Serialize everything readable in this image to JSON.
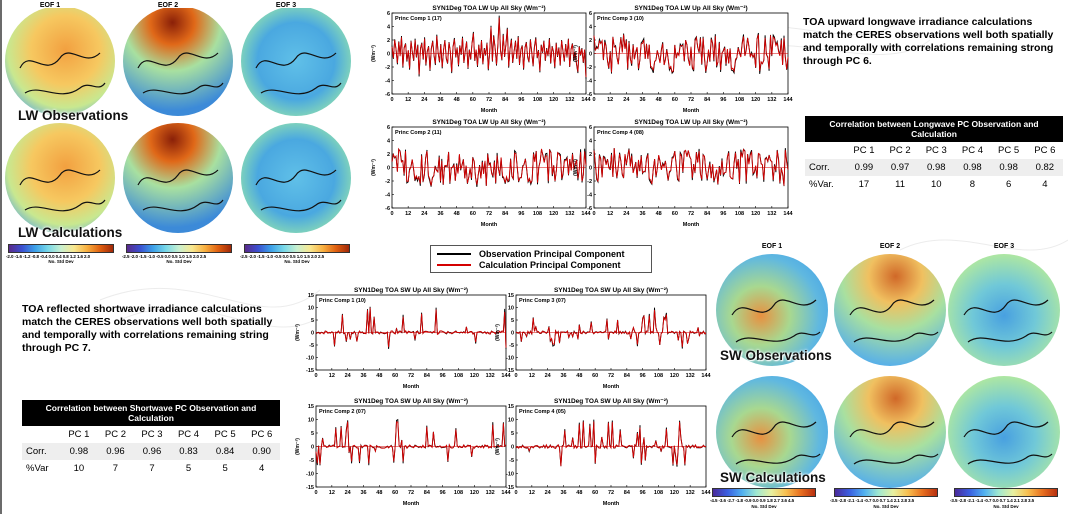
{
  "lw_panel": {
    "eof_titles": [
      "EOF 1",
      "EOF 2",
      "EOF 3"
    ],
    "label_obs": "LW Observations",
    "label_calc": "LW Calculations",
    "colorbars": [
      {
        "ticks": "-2.0 -1.6 -1.2 -0.8 -0.4 0.0 0.4 0.8 1.2 1.6 2.0",
        "unit": "No. Std Dev"
      },
      {
        "ticks": "-2.5 -2.0 -1.5 -1.0 -0.5 0.0 0.5 1.0 1.5 2.0 2.5",
        "unit": "No. Std Dev"
      },
      {
        "ticks": "-2.5 -2.0 -1.5 -1.0 -0.5 0.0 0.5 1.0 1.5 2.0 2.5",
        "unit": "No. Std Dev"
      }
    ]
  },
  "sw_panel": {
    "eof_titles": [
      "EOF 1",
      "EOF 2",
      "EOF 3"
    ],
    "label_obs": "SW Observations",
    "label_calc": "SW Calculations",
    "colorbars": [
      {
        "ticks": "-4.5 -3.6 -2.7 -1.8 -0.9 0.0 0.9 1.8 2.7 3.6 4.5",
        "unit": "No. Std Dev"
      },
      {
        "ticks": "-3.5 -2.8 -2.1 -1.4 -0.7 0.0 0.7 1.4 2.1 2.8 3.5",
        "unit": "No. Std Dev"
      },
      {
        "ticks": "-3.5 -2.8 -2.1 -1.4 -0.7 0.0 0.7 1.4 2.1 2.8 3.5",
        "unit": "No. Std Dev"
      }
    ]
  },
  "legend": {
    "obs_label": "Observation Principal Component",
    "calc_label": "Calculation Principal Component",
    "obs_color": "#000000",
    "calc_color": "#d40000"
  },
  "text": {
    "lw_description": "TOA upward longwave irradiance calculations match the CERES observations well both spatially and temporally with correlations remaining strong through PC 6.",
    "sw_description": "TOA reflected shortwave irradiance calculations match the CERES observations well both spatially and temporally with correlations remaining string through PC 7."
  },
  "lw_table": {
    "title": "Correlation between Longwave PC Observation and Calculation",
    "columns": [
      "PC 1",
      "PC 2",
      "PC 3",
      "PC 4",
      "PC 5",
      "PC 6"
    ],
    "rows": [
      {
        "label": "Corr.",
        "values": [
          "0.99",
          "0.97",
          "0.98",
          "0.98",
          "0.98",
          "0.82"
        ]
      },
      {
        "label": "%Var.",
        "values": [
          "17",
          "11",
          "10",
          "8",
          "6",
          "4"
        ]
      }
    ]
  },
  "sw_table": {
    "title": "Correlation between Shortwave PC Observation and Calculation",
    "columns": [
      "PC 1",
      "PC 2",
      "PC 3",
      "PC 4",
      "PC 5",
      "PC 6"
    ],
    "rows": [
      {
        "label": "Corr.",
        "values": [
          "0.98",
          "0.96",
          "0.96",
          "0.83",
          "0.84",
          "0.90"
        ]
      },
      {
        "label": "%Var",
        "values": [
          "10",
          "7",
          "7",
          "5",
          "5",
          "4"
        ]
      }
    ]
  },
  "chart_data": [
    {
      "id": "lw1",
      "type": "line",
      "title": "SYN1Deg TOA LW Up All Sky (Wm⁻²)",
      "subtitle": "Princ Comp 1 (17)",
      "xlabel": "Month",
      "ylabel": "(Wm⁻²)",
      "xlim": [
        0,
        144
      ],
      "ylim": [
        -6,
        6
      ],
      "xticks": [
        0,
        12,
        24,
        36,
        48,
        60,
        72,
        84,
        96,
        108,
        120,
        132,
        144
      ],
      "yticks": [
        -6,
        -4,
        -2,
        0,
        2,
        4,
        6
      ],
      "seed": 11,
      "amp": 2.0,
      "series": [
        {
          "name": "Observation Principal Component",
          "values": [
            1.2,
            -0.8,
            2.1,
            0.5,
            -1.6,
            1.8,
            -0.3,
            2.6,
            -2.1,
            0.9,
            1.5,
            -1.2,
            0.4,
            -2.4,
            1.9,
            0.2,
            -1.1,
            2.2,
            -0.6,
            1.3,
            -3.4,
            0.8,
            1.6,
            -0.9,
            2.4,
            -1.8,
            0.3,
            1.1,
            -2.6,
            0.7,
            1.9,
            -0.4,
            -1.7,
            2.8,
            0.1,
            -1.3,
            1.4,
            -2.2,
            0.6,
            2.0,
            -0.8,
            -1.5,
            1.7,
            0.3,
            -2.9,
            1.0,
            2.3,
            -0.6,
            0.9,
            -1.9,
            1.2,
            -0.2,
            2.5,
            -1.4,
            0.4,
            1.8,
            -2.3,
            0.6,
            -0.9,
            1.5,
            3.2,
            -1.1,
            0.5,
            -2.0,
            1.3,
            -0.7,
            2.0,
            -1.6,
            0.8,
            -0.3,
            1.6,
            -2.5,
            0.2,
            4.1,
            -1.2,
            2.7,
            0.9,
            -1.8,
            1.1,
            5.6,
            0.4,
            -1.0,
            2.9,
            -0.5,
            1.5,
            3.8,
            -2.1,
            0.7,
            2.2,
            -1.4,
            0.3,
            1.9,
            -0.8,
            2.6,
            -1.7,
            0.6,
            1.2,
            -2.4,
            0.9,
            1.7,
            -0.6,
            -1.3,
            2.1,
            0.2,
            -1.9,
            1.0,
            2.4,
            -0.7,
            0.5,
            -2.8,
            1.3,
            0.1,
            1.9,
            -1.1,
            0.8,
            -0.4,
            2.3,
            -1.5,
            1.1,
            0.3,
            -2.2,
            1.6,
            -0.5,
            0.9,
            -1.8,
            2.0,
            0.4,
            -1.2,
            1.4,
            -0.6,
            2.2,
            -2.0,
            0.7,
            1.5,
            -1.0,
            0.2,
            -1.6,
            -2.9,
            1.1,
            -0.3,
            0.8,
            -1.4,
            0.5,
            -3.8
          ]
        },
        {
          "name": "Calculation Principal Component",
          "values": [
            1.0,
            -0.7,
            2.0,
            0.6,
            -1.4,
            1.7,
            -0.4,
            2.4,
            -1.9,
            0.8,
            1.4,
            -1.0,
            0.5,
            -2.2,
            1.8,
            0.3,
            -1.0,
            2.0,
            -0.5,
            1.2,
            -3.1,
            0.7,
            1.5,
            -0.8,
            2.2,
            -1.6,
            0.4,
            1.0,
            -2.4,
            0.8,
            1.8,
            -0.3,
            -1.5,
            2.6,
            0.2,
            -1.2,
            1.3,
            -2.0,
            0.5,
            1.9,
            -0.7,
            -1.4,
            1.6,
            0.4,
            -2.7,
            0.9,
            2.1,
            -0.5,
            0.8,
            -1.7,
            1.1,
            -0.1,
            2.3,
            -1.3,
            0.5,
            1.7,
            -2.1,
            0.5,
            -0.8,
            1.4,
            3.0,
            -1.0,
            0.6,
            -1.8,
            1.2,
            -0.6,
            1.9,
            -1.5,
            0.7,
            -0.2,
            1.5,
            -2.3,
            0.3,
            3.9,
            -1.1,
            2.5,
            0.8,
            -1.6,
            1.0,
            5.3,
            0.5,
            -0.9,
            2.7,
            -0.4,
            1.4,
            3.6,
            -1.9,
            0.6,
            2.0,
            -1.3,
            0.4,
            1.8,
            -0.7,
            2.4,
            -1.6,
            0.5,
            1.1,
            -2.2,
            0.8,
            1.6,
            -0.5,
            -1.2,
            2.0,
            0.3,
            -1.8,
            0.9,
            2.2,
            -0.6,
            0.4,
            -2.6,
            1.2,
            0.2,
            1.8,
            -1.0,
            0.7,
            -0.3,
            2.1,
            -1.4,
            1.0,
            0.4,
            -2.0,
            1.5,
            -0.4,
            0.8,
            -1.7,
            1.9,
            0.5,
            -1.1,
            1.3,
            -0.5,
            2.1,
            -1.9,
            0.6,
            1.4,
            -0.9,
            0.3,
            -1.5,
            -2.7,
            1.0,
            -0.2,
            0.7,
            -1.3,
            0.6,
            -3.5
          ]
        }
      ]
    },
    {
      "id": "lw3",
      "type": "line",
      "title": "SYN1Deg TOA LW Up All Sky (Wm⁻²)",
      "subtitle": "Princ Comp 3 (10)",
      "xlabel": "Month",
      "ylabel": "(Wm⁻²)",
      "xlim": [
        0,
        144
      ],
      "ylim": [
        -6,
        6
      ],
      "xticks": [
        0,
        12,
        24,
        36,
        48,
        60,
        72,
        84,
        96,
        108,
        120,
        132,
        144
      ],
      "yticks": [
        -6,
        -4,
        -2,
        0,
        2,
        4,
        6
      ],
      "seed": 23,
      "amp": 1.9,
      "series": []
    },
    {
      "id": "lw2",
      "type": "line",
      "title": "SYN1Deg TOA LW Up All Sky (Wm⁻²)",
      "subtitle": "Princ Comp 2 (11)",
      "xlabel": "Month",
      "ylabel": "(Wm⁻²)",
      "xlim": [
        0,
        144
      ],
      "ylim": [
        -6,
        6
      ],
      "xticks": [
        0,
        12,
        24,
        36,
        48,
        60,
        72,
        84,
        96,
        108,
        120,
        132,
        144
      ],
      "yticks": [
        -6,
        -4,
        -2,
        0,
        2,
        4,
        6
      ],
      "seed": 37,
      "amp": 1.8,
      "series": []
    },
    {
      "id": "lw4",
      "type": "line",
      "title": "SYN1Deg TOA LW Up All Sky (Wm⁻²)",
      "subtitle": "Princ Comp 4 (08)",
      "xlabel": "Month",
      "ylabel": "(Wm⁻²)",
      "xlim": [
        0,
        144
      ],
      "ylim": [
        -6,
        6
      ],
      "xticks": [
        0,
        12,
        24,
        36,
        48,
        60,
        72,
        84,
        96,
        108,
        120,
        132,
        144
      ],
      "yticks": [
        -6,
        -4,
        -2,
        0,
        2,
        4,
        6
      ],
      "seed": 41,
      "amp": 1.8,
      "series": []
    },
    {
      "id": "sw1",
      "type": "line",
      "title": "SYN1Deg TOA SW Up All Sky (Wm⁻²)",
      "subtitle": "Princ Comp 1 (10)",
      "xlabel": "Month",
      "ylabel": "(Wm⁻²)",
      "xlim": [
        0,
        144
      ],
      "ylim": [
        -15,
        15
      ],
      "xticks": [
        0,
        12,
        24,
        36,
        48,
        60,
        72,
        84,
        96,
        108,
        120,
        132,
        144
      ],
      "yticks": [
        -15,
        -10,
        -5,
        0,
        5,
        10,
        15
      ],
      "seed": 53,
      "amp": 1.0,
      "spiky": true,
      "series": []
    },
    {
      "id": "sw3",
      "type": "line",
      "title": "SYN1Deg TOA SW Up All Sky (Wm⁻²)",
      "subtitle": "Princ Comp 3 (07)",
      "xlabel": "Month",
      "ylabel": "(Wm⁻²)",
      "xlim": [
        0,
        144
      ],
      "ylim": [
        -15,
        15
      ],
      "xticks": [
        0,
        12,
        24,
        36,
        48,
        60,
        72,
        84,
        96,
        108,
        120,
        132,
        144
      ],
      "yticks": [
        -15,
        -10,
        -5,
        0,
        5,
        10,
        15
      ],
      "seed": 67,
      "amp": 1.0,
      "spiky": true,
      "series": []
    },
    {
      "id": "sw2",
      "type": "line",
      "title": "SYN1Deg TOA SW Up All Sky (Wm⁻²)",
      "subtitle": "Princ Comp 2 (07)",
      "xlabel": "Month",
      "ylabel": "(Wm⁻²)",
      "xlim": [
        0,
        144
      ],
      "ylim": [
        -15,
        15
      ],
      "xticks": [
        0,
        12,
        24,
        36,
        48,
        60,
        72,
        84,
        96,
        108,
        120,
        132,
        144
      ],
      "yticks": [
        -15,
        -10,
        -5,
        0,
        5,
        10,
        15
      ],
      "seed": 71,
      "amp": 1.0,
      "spiky": true,
      "series": []
    },
    {
      "id": "sw4",
      "type": "line",
      "title": "SYN1Deg TOA SW Up All Sky (Wm⁻²)",
      "subtitle": "Princ Comp 4 (05)",
      "xlabel": "Month",
      "ylabel": "(Wm⁻²)",
      "xlim": [
        0,
        144
      ],
      "ylim": [
        -15,
        15
      ],
      "xticks": [
        0,
        12,
        24,
        36,
        48,
        60,
        72,
        84,
        96,
        108,
        120,
        132,
        144
      ],
      "yticks": [
        -15,
        -10,
        -5,
        0,
        5,
        10,
        15
      ],
      "seed": 83,
      "amp": 1.2,
      "spiky": true,
      "series": []
    }
  ]
}
